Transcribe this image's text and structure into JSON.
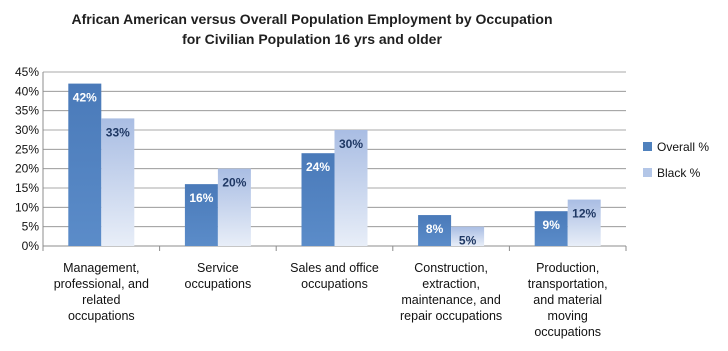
{
  "chart_data": {
    "type": "bar",
    "title": "African American versus Overall Population Employment by Occupation",
    "subtitle": "for Civilian Population 16 yrs and older",
    "xlabel": "",
    "ylabel": "",
    "ylim": [
      0,
      45
    ],
    "yticks": [
      0,
      5,
      10,
      15,
      20,
      25,
      30,
      35,
      40,
      45
    ],
    "tick_suffix": "%",
    "grid": true,
    "legend_position": "right",
    "categories": [
      "Management, professional, and related occupations",
      "Service occupations",
      "Sales and office occupations",
      "Construction, extraction, maintenance, and repair occupations",
      "Production, transportation, and material moving occupations"
    ],
    "category_lines": [
      [
        "Management,",
        "professional, and",
        "related",
        "occupations"
      ],
      [
        "Service",
        "occupations"
      ],
      [
        "Sales and office",
        "occupations"
      ],
      [
        "Construction,",
        "extraction,",
        "maintenance, and",
        "repair occupations"
      ],
      [
        "Production,",
        "transportation,",
        "and material",
        "moving",
        "occupations"
      ]
    ],
    "series": [
      {
        "name": "Overall %",
        "values": [
          42,
          16,
          24,
          8,
          9
        ],
        "labels": [
          "42%",
          "16%",
          "24%",
          "8%",
          "9%"
        ],
        "color": "#4f81bd"
      },
      {
        "name": "Black %",
        "values": [
          33,
          20,
          30,
          5,
          12
        ],
        "labels": [
          "33%",
          "20%",
          "30%",
          "5%",
          "12%"
        ],
        "color": "#b3c6e7"
      }
    ]
  }
}
